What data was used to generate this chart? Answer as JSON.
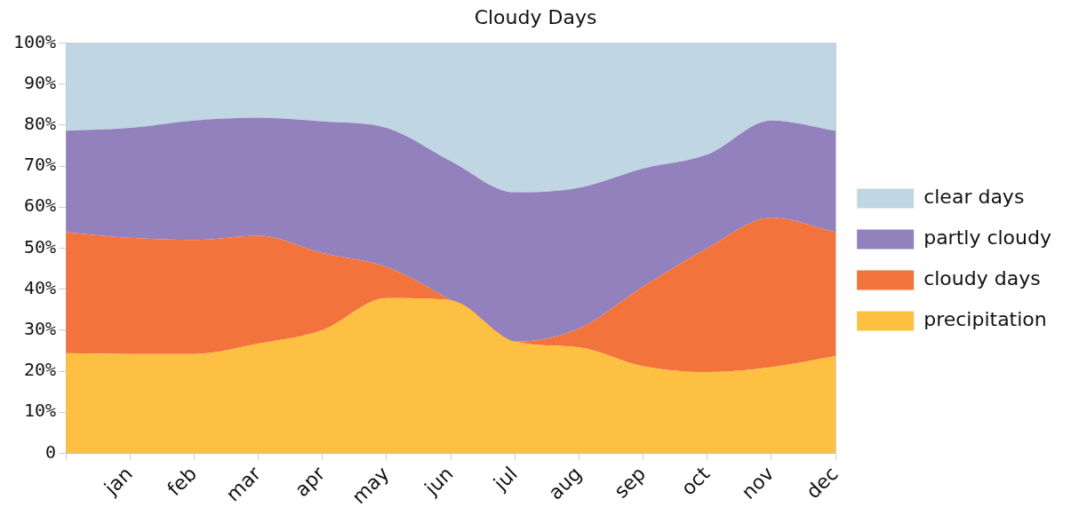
{
  "chart_data": {
    "type": "area",
    "title": "Cloudy Days",
    "stacked": true,
    "legend": "right",
    "grid": true,
    "marker": "none",
    "categories": [
      null,
      "jan",
      "feb",
      "mar",
      "apr",
      "may",
      "jun",
      "jul",
      "aug",
      "sep",
      "oct",
      "nov",
      "dec"
    ],
    "ylim": [
      0,
      100
    ],
    "yticks": [
      {
        "value": 0,
        "label": "0"
      },
      {
        "value": 10,
        "label": "10%"
      },
      {
        "value": 20,
        "label": "20%"
      },
      {
        "value": 30,
        "label": "30%"
      },
      {
        "value": 40,
        "label": "40%"
      },
      {
        "value": 50,
        "label": "50%"
      },
      {
        "value": 60,
        "label": "60%"
      },
      {
        "value": 70,
        "label": "70%"
      },
      {
        "value": 80,
        "label": "80%"
      },
      {
        "value": 90,
        "label": "90%"
      },
      {
        "value": 100,
        "label": "100%"
      }
    ],
    "series": [
      {
        "name": "precipitation",
        "color": "#fdc043",
        "values": [
          24.4,
          24.2,
          24.2,
          26.7,
          30,
          37.8,
          37.3,
          27.2,
          25.8,
          21.2,
          19.8,
          21,
          23.7
        ]
      },
      {
        "name": "cloudy days",
        "color": "#f2733c",
        "values": [
          29.5,
          28.3,
          27.8,
          26.3,
          18.8,
          7.6,
          0,
          0,
          4.6,
          19.4,
          30.2,
          36.4,
          30.2
        ]
      },
      {
        "name": "partly cloudy",
        "color": "#9381bd",
        "values": [
          24.7,
          26.8,
          29.1,
          28.8,
          32.1,
          33.9,
          33.9,
          36.4,
          34.3,
          28.8,
          22.8,
          23.7,
          24.7
        ]
      },
      {
        "name": "clear days",
        "color": "#c0d6e2",
        "values": [
          21.4,
          20.7,
          18.9,
          18.2,
          19.1,
          20.7,
          28.8,
          36.4,
          35.3,
          30.6,
          27.2,
          18.9,
          21.4
        ]
      }
    ]
  }
}
